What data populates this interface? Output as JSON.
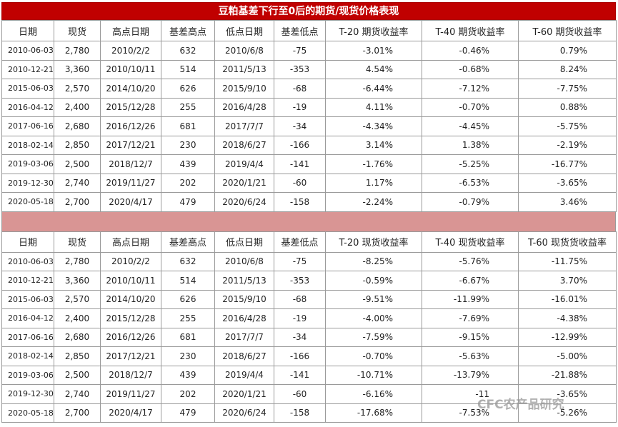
{
  "title": "豆粕基差下行至0后的期货/现货价格表现",
  "table1": {
    "header": [
      "日期",
      "现货",
      "高点日期",
      "基差高点",
      "低点日期",
      "基差低点",
      "T-20 期货收益率",
      "T-40 期货收益率",
      "T-60 期货收益率"
    ],
    "rows": [
      [
        "2010-06-03",
        "2,780",
        "2010/2/2",
        "632",
        "2010/6/8",
        "-75",
        "-3.01%",
        "-0.46%",
        "0.79%"
      ],
      [
        "2010-12-21",
        "3,360",
        "2010/10/11",
        "514",
        "2011/5/13",
        "-353",
        "4.54%",
        "-0.68%",
        "8.24%"
      ],
      [
        "2015-06-03",
        "2,570",
        "2014/10/20",
        "626",
        "2015/9/10",
        "-68",
        "-6.44%",
        "-7.12%",
        "-7.75%"
      ],
      [
        "2016-04-12",
        "2,400",
        "2015/12/28",
        "255",
        "2016/4/28",
        "-19",
        "4.11%",
        "-0.70%",
        "0.88%"
      ],
      [
        "2017-06-16",
        "2,680",
        "2016/12/26",
        "681",
        "2017/7/7",
        "-34",
        "-4.34%",
        "-4.45%",
        "-5.75%"
      ],
      [
        "2018-02-14",
        "2,850",
        "2017/12/21",
        "230",
        "2018/6/27",
        "-166",
        "3.14%",
        "1.38%",
        "-2.19%"
      ],
      [
        "2019-03-06",
        "2,500",
        "2018/12/7",
        "439",
        "2019/4/4",
        "-141",
        "-1.76%",
        "-5.25%",
        "-16.77%"
      ],
      [
        "2019-12-30",
        "2,740",
        "2019/11/27",
        "202",
        "2020/1/21",
        "-60",
        "1.17%",
        "-6.53%",
        "-3.65%"
      ],
      [
        "2020-05-18",
        "2,700",
        "2020/4/17",
        "479",
        "2020/6/24",
        "-158",
        "-2.24%",
        "-0.79%",
        "3.46%"
      ]
    ]
  },
  "table2": {
    "header": [
      "日期",
      "现货",
      "高点日期",
      "基差高点",
      "低点日期",
      "基差低点",
      "T-20 现货收益率",
      "T-40 现货收益率",
      "T-60 现货货收益率"
    ],
    "rows": [
      [
        "2010-06-03",
        "2,780",
        "2010/2/2",
        "632",
        "2010/6/8",
        "-75",
        "-8.25%",
        "-5.76%",
        "-11.75%"
      ],
      [
        "2010-12-21",
        "3,360",
        "2010/10/11",
        "514",
        "2011/5/13",
        "-353",
        "-0.59%",
        "-6.67%",
        "3.70%"
      ],
      [
        "2015-06-03",
        "2,570",
        "2014/10/20",
        "626",
        "2015/9/10",
        "-68",
        "-9.51%",
        "-11.99%",
        "-16.01%"
      ],
      [
        "2016-04-12",
        "2,400",
        "2015/12/28",
        "255",
        "2016/4/28",
        "-19",
        "-4.00%",
        "-7.69%",
        "-4.38%"
      ],
      [
        "2017-06-16",
        "2,680",
        "2016/12/26",
        "681",
        "2017/7/7",
        "-34",
        "-7.59%",
        "-9.15%",
        "-12.99%"
      ],
      [
        "2018-02-14",
        "2,850",
        "2017/12/21",
        "230",
        "2018/6/27",
        "-166",
        "-0.70%",
        "-5.63%",
        "-5.00%"
      ],
      [
        "2019-03-06",
        "2,500",
        "2018/12/7",
        "439",
        "2019/4/4",
        "-141",
        "-10.71%",
        "-13.79%",
        "-21.88%"
      ],
      [
        "2019-12-30",
        "2,740",
        "2019/11/27",
        "202",
        "2020/1/21",
        "-60",
        "-6.16%",
        "-11",
        "-3.65%"
      ],
      [
        "2020-05-18",
        "2,700",
        "2020/4/17",
        "479",
        "2020/6/24",
        "-158",
        "-17.68%",
        "-7.53%",
        "-5.26%"
      ]
    ]
  },
  "watermark": "CFC农产品研究"
}
